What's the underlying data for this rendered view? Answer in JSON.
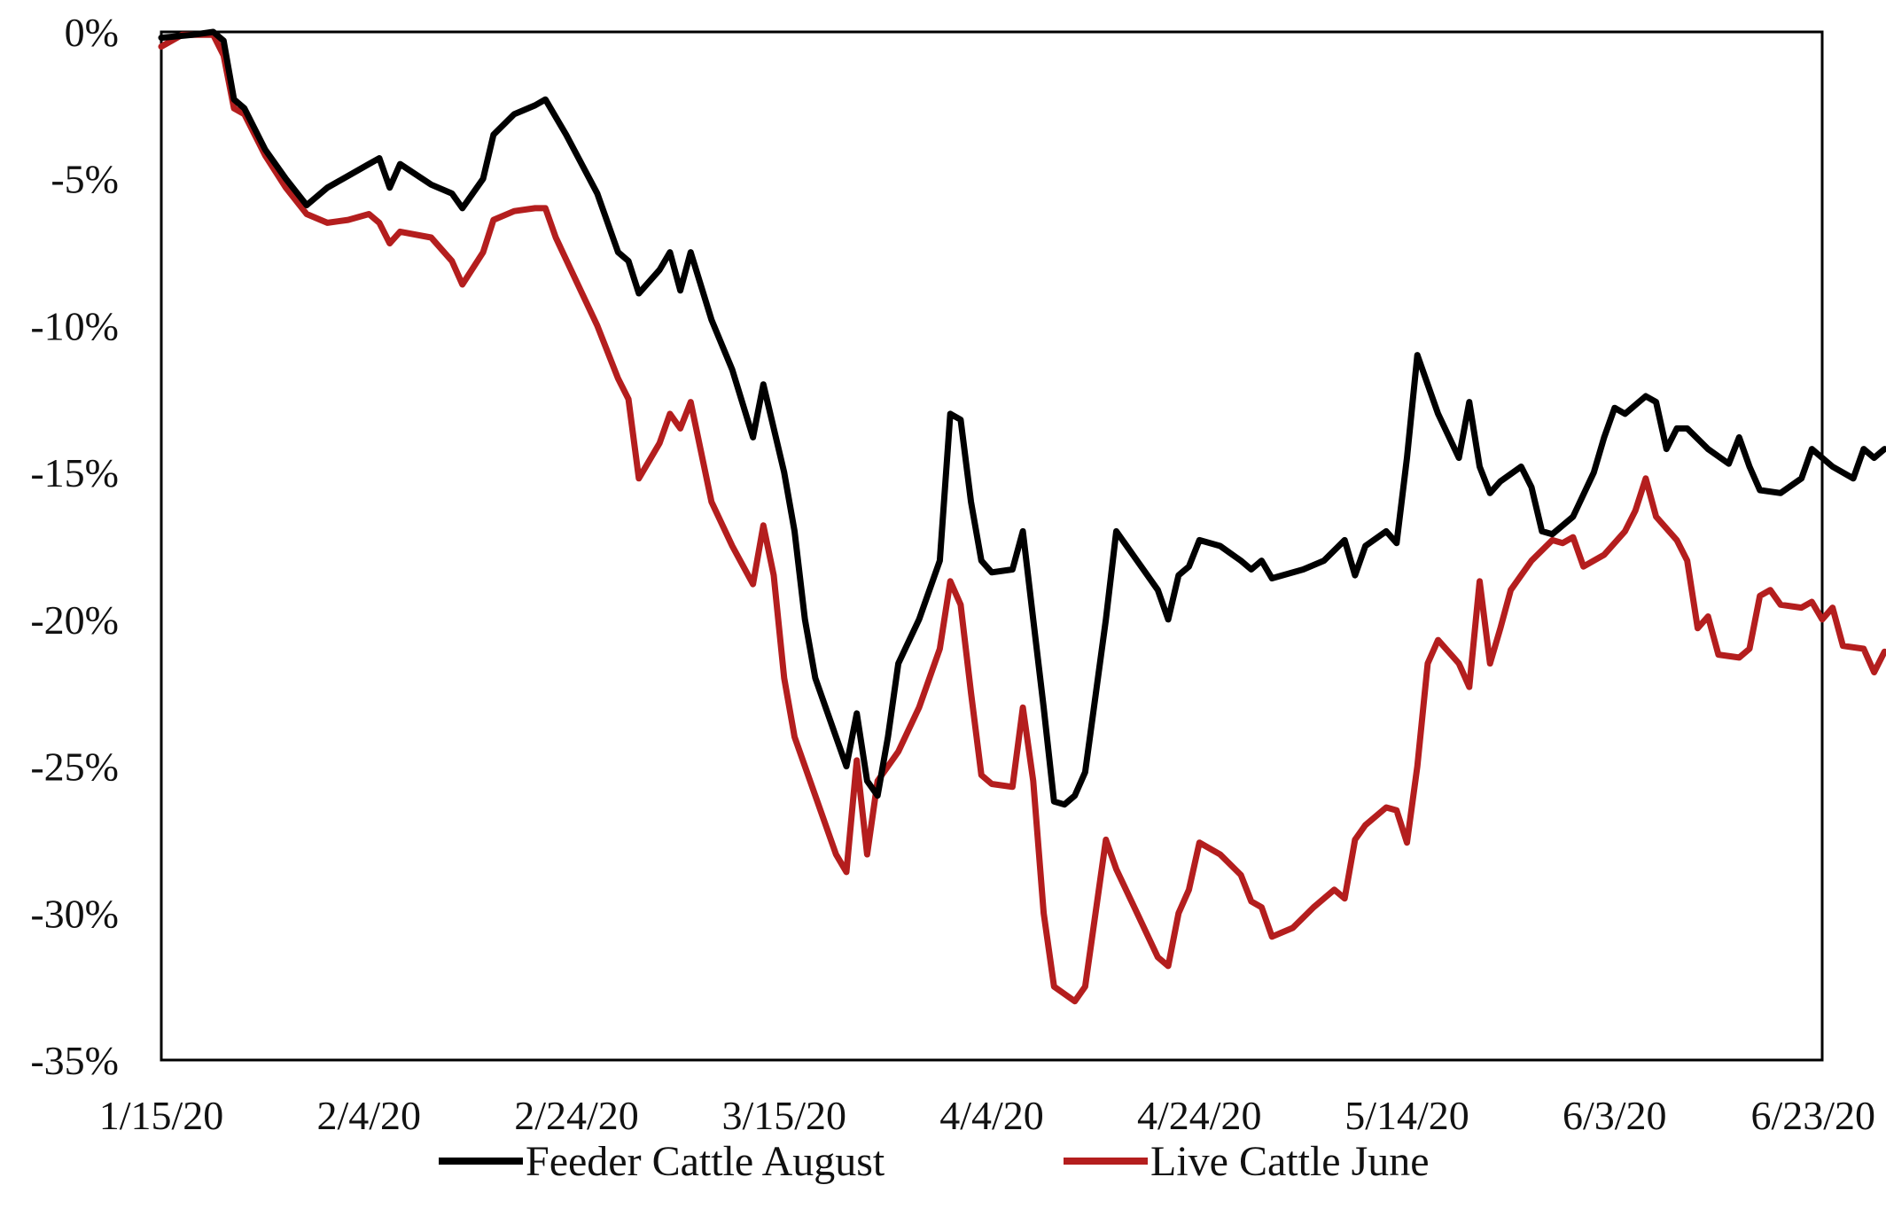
{
  "chart_data": {
    "type": "line",
    "title": "",
    "xlabel": "",
    "ylabel": "",
    "x_start": "1/15/20",
    "x_end": "6/23/20",
    "x_tick_labels": [
      "1/15/20",
      "2/4/20",
      "2/24/20",
      "3/15/20",
      "4/4/20",
      "4/24/20",
      "5/14/20",
      "6/3/20",
      "6/23/20"
    ],
    "y_tick_labels": [
      "0%",
      "-5%",
      "-10%",
      "-15%",
      "-20%",
      "-25%",
      "-30%",
      "-35%"
    ],
    "ylim": [
      -35,
      0
    ],
    "grid": false,
    "legend_position": "bottom",
    "series": [
      {
        "name": "Feeder Cattle August",
        "color": "#000000",
        "points": [
          [
            "1/15/20",
            -0.2
          ],
          [
            "1/18/20",
            -0.1
          ],
          [
            "1/20/20",
            0.0
          ],
          [
            "1/21/20",
            -0.3
          ],
          [
            "1/22/20",
            -2.3
          ],
          [
            "1/23/20",
            -2.6
          ],
          [
            "1/25/20",
            -4.0
          ],
          [
            "1/27/20",
            -5.0
          ],
          [
            "1/29/20",
            -5.9
          ],
          [
            "1/31/20",
            -5.3
          ],
          [
            "2/2/20",
            -4.9
          ],
          [
            "2/4/20",
            -4.5
          ],
          [
            "2/5/20",
            -4.3
          ],
          [
            "2/6/20",
            -5.3
          ],
          [
            "2/7/20",
            -4.5
          ],
          [
            "2/10/20",
            -5.2
          ],
          [
            "2/12/20",
            -5.5
          ],
          [
            "2/13/20",
            -6.0
          ],
          [
            "2/15/20",
            -5.0
          ],
          [
            "2/16/20",
            -3.5
          ],
          [
            "2/18/20",
            -2.8
          ],
          [
            "2/20/20",
            -2.5
          ],
          [
            "2/21/20",
            -2.3
          ],
          [
            "2/23/20",
            -3.5
          ],
          [
            "2/26/20",
            -5.5
          ],
          [
            "2/28/20",
            -7.5
          ],
          [
            "2/29/20",
            -7.8
          ],
          [
            "3/1/20",
            -8.9
          ],
          [
            "3/3/20",
            -8.1
          ],
          [
            "3/4/20",
            -7.5
          ],
          [
            "3/5/20",
            -8.8
          ],
          [
            "3/6/20",
            -7.5
          ],
          [
            "3/8/20",
            -9.8
          ],
          [
            "3/10/20",
            -11.5
          ],
          [
            "3/12/20",
            -13.8
          ],
          [
            "3/13/20",
            -12.0
          ],
          [
            "3/15/20",
            -15.0
          ],
          [
            "3/16/20",
            -17.0
          ],
          [
            "3/17/20",
            -20.0
          ],
          [
            "3/18/20",
            -22.0
          ],
          [
            "3/20/20",
            -24.0
          ],
          [
            "3/21/20",
            -25.0
          ],
          [
            "3/22/20",
            -23.2
          ],
          [
            "3/23/20",
            -25.5
          ],
          [
            "3/24/20",
            -26.0
          ],
          [
            "3/25/20",
            -24.0
          ],
          [
            "3/26/20",
            -21.5
          ],
          [
            "3/28/20",
            -20.0
          ],
          [
            "3/30/20",
            -18.0
          ],
          [
            "3/31/20",
            -13.0
          ],
          [
            "4/1/20",
            -13.2
          ],
          [
            "4/2/20",
            -16.0
          ],
          [
            "4/3/20",
            -18.0
          ],
          [
            "4/4/20",
            -18.4
          ],
          [
            "4/6/20",
            -18.3
          ],
          [
            "4/7/20",
            -17.0
          ],
          [
            "4/8/20",
            -20.0
          ],
          [
            "4/9/20",
            -23.0
          ],
          [
            "4/10/20",
            -26.2
          ],
          [
            "4/11/20",
            -26.3
          ],
          [
            "4/12/20",
            -26.0
          ],
          [
            "4/13/20",
            -25.2
          ],
          [
            "4/15/20",
            -20.0
          ],
          [
            "4/16/20",
            -17.0
          ],
          [
            "4/18/20",
            -18.0
          ],
          [
            "4/20/20",
            -19.0
          ],
          [
            "4/21/20",
            -20.0
          ],
          [
            "4/22/20",
            -18.5
          ],
          [
            "4/23/20",
            -18.2
          ],
          [
            "4/24/20",
            -17.3
          ],
          [
            "4/26/20",
            -17.5
          ],
          [
            "4/28/20",
            -18.0
          ],
          [
            "4/29/20",
            -18.3
          ],
          [
            "4/30/20",
            -18.0
          ],
          [
            "5/1/20",
            -18.6
          ],
          [
            "5/4/20",
            -18.3
          ],
          [
            "5/6/20",
            -18.0
          ],
          [
            "5/8/20",
            -17.3
          ],
          [
            "5/9/20",
            -18.5
          ],
          [
            "5/10/20",
            -17.5
          ],
          [
            "5/12/20",
            -17.0
          ],
          [
            "5/13/20",
            -17.4
          ],
          [
            "5/14/20",
            -14.5
          ],
          [
            "5/15/20",
            -11.0
          ],
          [
            "5/17/20",
            -13.0
          ],
          [
            "5/19/20",
            -14.5
          ],
          [
            "5/20/20",
            -12.6
          ],
          [
            "5/21/20",
            -14.8
          ],
          [
            "5/22/20",
            -15.7
          ],
          [
            "5/23/20",
            -15.3
          ],
          [
            "5/25/20",
            -14.8
          ],
          [
            "5/26/20",
            -15.5
          ],
          [
            "5/27/20",
            -17.0
          ],
          [
            "5/28/20",
            -17.1
          ],
          [
            "5/30/20",
            -16.5
          ],
          [
            "6/1/20",
            -15.0
          ],
          [
            "6/2/20",
            -13.8
          ],
          [
            "6/3/20",
            -12.8
          ],
          [
            "6/4/20",
            -13.0
          ],
          [
            "6/6/20",
            -12.4
          ],
          [
            "6/7/20",
            -12.6
          ],
          [
            "6/8/20",
            -14.2
          ],
          [
            "6/9/20",
            -13.5
          ],
          [
            "6/10/20",
            -13.5
          ],
          [
            "6/12/20",
            -14.2
          ],
          [
            "6/14/20",
            -14.7
          ],
          [
            "6/15/20",
            -13.8
          ],
          [
            "6/16/20",
            -14.8
          ],
          [
            "6/17/20",
            -15.6
          ],
          [
            "6/19/20",
            -15.7
          ],
          [
            "6/21/20",
            -15.2
          ],
          [
            "6/22/20",
            -14.2
          ],
          [
            "6/24/20",
            -14.8
          ],
          [
            "6/26/20",
            -15.2
          ],
          [
            "6/27/20",
            -14.2
          ],
          [
            "6/28/20",
            -14.5
          ],
          [
            "6/29/20",
            -14.2
          ]
        ]
      },
      {
        "name": "Live Cattle June",
        "color": "#b41e1e",
        "points": [
          [
            "1/15/20",
            -0.5
          ],
          [
            "1/17/20",
            -0.1
          ],
          [
            "1/20/20",
            -0.1
          ],
          [
            "1/21/20",
            -0.8
          ],
          [
            "1/22/20",
            -2.6
          ],
          [
            "1/23/20",
            -2.8
          ],
          [
            "1/25/20",
            -4.2
          ],
          [
            "1/27/20",
            -5.3
          ],
          [
            "1/29/20",
            -6.2
          ],
          [
            "1/31/20",
            -6.5
          ],
          [
            "2/2/20",
            -6.4
          ],
          [
            "2/4/20",
            -6.2
          ],
          [
            "2/5/20",
            -6.5
          ],
          [
            "2/6/20",
            -7.2
          ],
          [
            "2/7/20",
            -6.8
          ],
          [
            "2/10/20",
            -7.0
          ],
          [
            "2/12/20",
            -7.8
          ],
          [
            "2/13/20",
            -8.6
          ],
          [
            "2/15/20",
            -7.5
          ],
          [
            "2/16/20",
            -6.4
          ],
          [
            "2/18/20",
            -6.1
          ],
          [
            "2/20/20",
            -6.0
          ],
          [
            "2/21/20",
            -6.0
          ],
          [
            "2/22/20",
            -7.0
          ],
          [
            "2/24/20",
            -8.5
          ],
          [
            "2/26/20",
            -10.0
          ],
          [
            "2/28/20",
            -11.8
          ],
          [
            "2/29/20",
            -12.5
          ],
          [
            "3/1/20",
            -15.2
          ],
          [
            "3/3/20",
            -14.0
          ],
          [
            "3/4/20",
            -13.0
          ],
          [
            "3/5/20",
            -13.5
          ],
          [
            "3/6/20",
            -12.6
          ],
          [
            "3/8/20",
            -16.0
          ],
          [
            "3/10/20",
            -17.5
          ],
          [
            "3/12/20",
            -18.8
          ],
          [
            "3/13/20",
            -16.8
          ],
          [
            "3/14/20",
            -18.5
          ],
          [
            "3/15/20",
            -22.0
          ],
          [
            "3/16/20",
            -24.0
          ],
          [
            "3/18/20",
            -26.0
          ],
          [
            "3/20/20",
            -28.0
          ],
          [
            "3/21/20",
            -28.6
          ],
          [
            "3/22/20",
            -24.8
          ],
          [
            "3/23/20",
            -28.0
          ],
          [
            "3/24/20",
            -25.5
          ],
          [
            "3/26/20",
            -24.5
          ],
          [
            "3/28/20",
            -23.0
          ],
          [
            "3/30/20",
            -21.0
          ],
          [
            "3/31/20",
            -18.7
          ],
          [
            "4/1/20",
            -19.5
          ],
          [
            "4/2/20",
            -22.5
          ],
          [
            "4/3/20",
            -25.3
          ],
          [
            "4/4/20",
            -25.6
          ],
          [
            "4/6/20",
            -25.7
          ],
          [
            "4/7/20",
            -23.0
          ],
          [
            "4/8/20",
            -25.5
          ],
          [
            "4/9/20",
            -30.0
          ],
          [
            "4/10/20",
            -32.5
          ],
          [
            "4/12/20",
            -33.0
          ],
          [
            "4/13/20",
            -32.5
          ],
          [
            "4/14/20",
            -30.0
          ],
          [
            "4/15/20",
            -27.5
          ],
          [
            "4/16/20",
            -28.5
          ],
          [
            "4/18/20",
            -30.0
          ],
          [
            "4/20/20",
            -31.5
          ],
          [
            "4/21/20",
            -31.8
          ],
          [
            "4/22/20",
            -30.0
          ],
          [
            "4/23/20",
            -29.2
          ],
          [
            "4/24/20",
            -27.6
          ],
          [
            "4/26/20",
            -28.0
          ],
          [
            "4/28/20",
            -28.7
          ],
          [
            "4/29/20",
            -29.6
          ],
          [
            "4/30/20",
            -29.8
          ],
          [
            "5/1/20",
            -30.8
          ],
          [
            "5/3/20",
            -30.5
          ],
          [
            "5/5/20",
            -29.8
          ],
          [
            "5/7/20",
            -29.2
          ],
          [
            "5/8/20",
            -29.5
          ],
          [
            "5/9/20",
            -27.5
          ],
          [
            "5/10/20",
            -27.0
          ],
          [
            "5/12/20",
            -26.4
          ],
          [
            "5/13/20",
            -26.5
          ],
          [
            "5/14/20",
            -27.6
          ],
          [
            "5/15/20",
            -25.0
          ],
          [
            "5/16/20",
            -21.5
          ],
          [
            "5/17/20",
            -20.7
          ],
          [
            "5/19/20",
            -21.5
          ],
          [
            "5/20/20",
            -22.3
          ],
          [
            "5/21/20",
            -18.7
          ],
          [
            "5/22/20",
            -21.5
          ],
          [
            "5/23/20",
            -20.3
          ],
          [
            "5/24/20",
            -19.0
          ],
          [
            "5/26/20",
            -18.0
          ],
          [
            "5/28/20",
            -17.3
          ],
          [
            "5/29/20",
            -17.4
          ],
          [
            "5/30/20",
            -17.2
          ],
          [
            "5/31/20",
            -18.2
          ],
          [
            "6/2/20",
            -17.8
          ],
          [
            "6/4/20",
            -17.0
          ],
          [
            "6/5/20",
            -16.3
          ],
          [
            "6/6/20",
            -15.2
          ],
          [
            "6/7/20",
            -16.5
          ],
          [
            "6/9/20",
            -17.3
          ],
          [
            "6/10/20",
            -18.0
          ],
          [
            "6/11/20",
            -20.3
          ],
          [
            "6/12/20",
            -19.9
          ],
          [
            "6/13/20",
            -21.2
          ],
          [
            "6/15/20",
            -21.3
          ],
          [
            "6/16/20",
            -21.0
          ],
          [
            "6/17/20",
            -19.2
          ],
          [
            "6/18/20",
            -19.0
          ],
          [
            "6/19/20",
            -19.5
          ],
          [
            "6/21/20",
            -19.6
          ],
          [
            "6/22/20",
            -19.4
          ],
          [
            "6/23/20",
            -20.0
          ],
          [
            "6/24/20",
            -19.6
          ],
          [
            "6/25/20",
            -20.9
          ],
          [
            "6/27/20",
            -21.0
          ],
          [
            "6/28/20",
            -21.8
          ],
          [
            "6/29/20",
            -21.1
          ]
        ]
      }
    ]
  }
}
